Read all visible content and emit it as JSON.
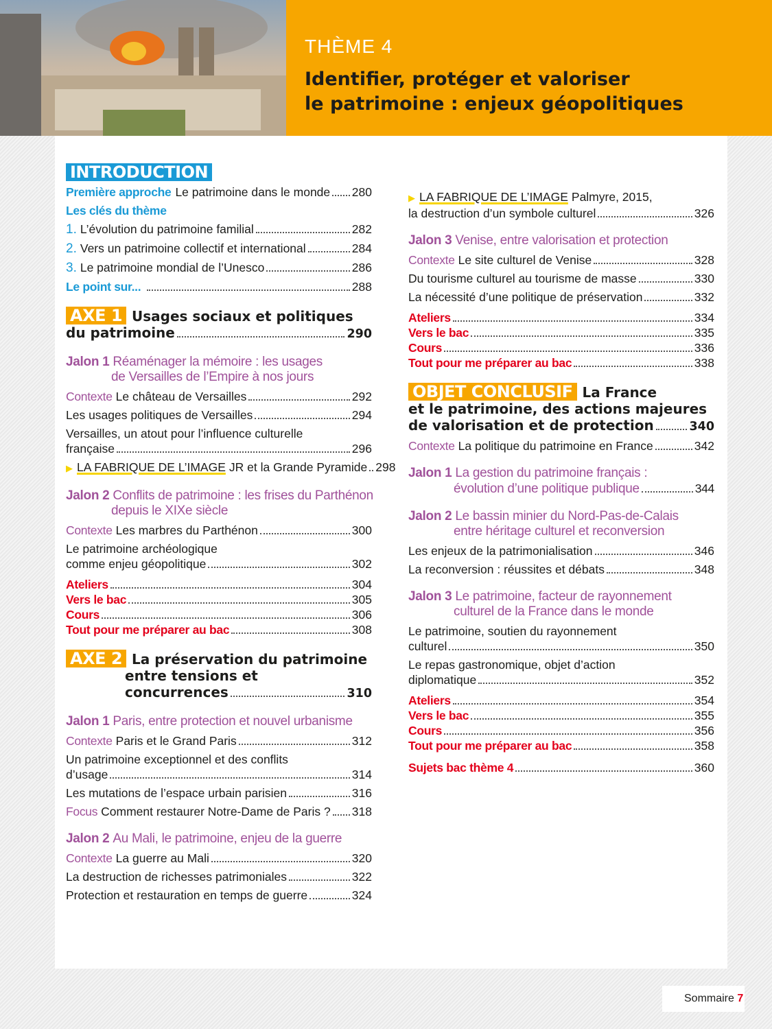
{
  "header": {
    "theme": "THÈME 4",
    "title_lines": [
      "Identifier, protéger et valoriser",
      "le patrimoine : enjeux géopolitiques"
    ]
  },
  "left": [
    [
      {
        "kind": "box",
        "style": "intro",
        "label": "INTRODUCTION",
        "lines": []
      },
      {
        "kind": "row",
        "pstyle": "blue",
        "prefix": "Première approche",
        "lines": [
          "Le patrimoine dans le monde"
        ],
        "page": "280"
      },
      {
        "kind": "row",
        "pstyle": "blue",
        "prefix": "Les clés du thème",
        "lines": [
          ""
        ],
        "page": ""
      },
      {
        "kind": "row",
        "pstyle": "num",
        "prefix": "1.",
        "lines": [
          "L’évolution du patrimoine familial"
        ],
        "page": "282"
      },
      {
        "kind": "row",
        "pstyle": "num",
        "prefix": "2.",
        "lines": [
          "Vers un patrimoine collectif et international"
        ],
        "page": "284"
      },
      {
        "kind": "row",
        "pstyle": "num",
        "prefix": "3.",
        "lines": [
          "Le patrimoine mondial de l’Unesco"
        ],
        "page": "286"
      },
      {
        "kind": "row",
        "pstyle": "blue",
        "prefix": "Le point sur...",
        "lines": [
          ""
        ],
        "page": "288"
      }
    ],
    [
      {
        "kind": "box",
        "style": "axe",
        "label": "AXE 1",
        "lines": [
          "Usages sociaux et politiques",
          "du patrimoine"
        ],
        "page": "290"
      }
    ],
    [
      {
        "kind": "jalon",
        "prefix": "Jalon 1",
        "lines": [
          "Réaménager la mémoire : les usages",
          "de Versailles de l’Empire à nos jours"
        ],
        "page": ""
      },
      {
        "kind": "row",
        "pstyle": "ctx",
        "prefix": "Contexte",
        "lines": [
          "Le château de Versailles"
        ],
        "page": "292"
      },
      {
        "kind": "row",
        "pstyle": "",
        "prefix": "",
        "lines": [
          "Les usages politiques de Versailles"
        ],
        "page": "294"
      },
      {
        "kind": "row",
        "pstyle": "",
        "prefix": "",
        "lines": [
          "Versailles, un atout pour l’influence culturelle",
          "française"
        ],
        "page": "296"
      },
      {
        "kind": "row",
        "pstyle": "fab",
        "prefix": "LA FABRIQUE DE L’IMAGE",
        "lines": [
          "JR et la Grande Pyramide"
        ],
        "page": "298"
      }
    ],
    [
      {
        "kind": "jalon",
        "prefix": "Jalon 2",
        "lines": [
          "Conflits de patrimoine : les frises du Parthénon",
          "depuis le XIXe siècle"
        ],
        "page": ""
      },
      {
        "kind": "row",
        "pstyle": "ctx",
        "prefix": "Contexte",
        "lines": [
          "Les marbres du Parthénon"
        ],
        "page": "300"
      },
      {
        "kind": "row",
        "pstyle": "",
        "prefix": "",
        "lines": [
          "Le patrimoine archéologique",
          "comme enjeu géopolitique"
        ],
        "page": "302"
      },
      {
        "kind": "red",
        "prefix": "Ateliers",
        "page": "304"
      },
      {
        "kind": "red",
        "prefix": "Vers le bac",
        "page": "305"
      },
      {
        "kind": "red",
        "prefix": "Cours",
        "page": "306"
      },
      {
        "kind": "red",
        "prefix": "Tout pour me préparer au bac",
        "page": "308"
      }
    ],
    [
      {
        "kind": "box",
        "style": "axe",
        "label": "AXE 2",
        "lines": [
          "La préservation du patrimoine",
          "entre tensions et",
          "concurrences"
        ],
        "page": "310"
      }
    ],
    [
      {
        "kind": "jalon",
        "prefix": "Jalon 1",
        "lines": [
          "Paris, entre protection et nouvel urbanisme"
        ],
        "page": ""
      },
      {
        "kind": "row",
        "pstyle": "ctx",
        "prefix": "Contexte",
        "lines": [
          "Paris et le Grand Paris"
        ],
        "page": "312"
      },
      {
        "kind": "row",
        "pstyle": "",
        "prefix": "",
        "lines": [
          "Un patrimoine exceptionnel et des conflits",
          "d’usage"
        ],
        "page": "314"
      },
      {
        "kind": "row",
        "pstyle": "",
        "prefix": "",
        "lines": [
          "Les mutations de l’espace urbain parisien"
        ],
        "page": "316"
      },
      {
        "kind": "row",
        "pstyle": "ctx",
        "prefix": "Focus",
        "lines": [
          "Comment restaurer Notre-Dame de Paris ?"
        ],
        "page": "318"
      }
    ],
    [
      {
        "kind": "jalon",
        "prefix": "Jalon 2",
        "lines": [
          "Au Mali, le patrimoine, enjeu de la guerre"
        ],
        "page": ""
      },
      {
        "kind": "row",
        "pstyle": "ctx",
        "prefix": "Contexte",
        "lines": [
          "La guerre au Mali"
        ],
        "page": "320"
      },
      {
        "kind": "row",
        "pstyle": "",
        "prefix": "",
        "lines": [
          "La destruction de richesses patrimoniales"
        ],
        "page": "322"
      },
      {
        "kind": "row",
        "pstyle": "",
        "prefix": "",
        "lines": [
          "Protection et restauration en temps de guerre"
        ],
        "page": "324"
      }
    ]
  ],
  "right": [
    [
      {
        "kind": "row",
        "pstyle": "fab",
        "prefix": "LA FABRIQUE DE L’IMAGE",
        "lines": [
          "Palmyre, 2015,",
          "la destruction d’un symbole culturel"
        ],
        "page": "326"
      }
    ],
    [
      {
        "kind": "jalon",
        "prefix": "Jalon 3",
        "lines": [
          "Venise, entre valorisation et protection"
        ],
        "page": ""
      },
      {
        "kind": "row",
        "pstyle": "ctx",
        "prefix": "Contexte",
        "lines": [
          "Le site culturel de Venise"
        ],
        "page": "328"
      },
      {
        "kind": "row",
        "pstyle": "",
        "prefix": "",
        "lines": [
          "Du tourisme culturel au tourisme de masse"
        ],
        "page": "330"
      },
      {
        "kind": "row",
        "pstyle": "",
        "prefix": "",
        "lines": [
          "La nécessité d’une politique de préservation"
        ],
        "page": "332"
      },
      {
        "kind": "red",
        "prefix": "Ateliers",
        "page": "334"
      },
      {
        "kind": "red",
        "prefix": "Vers le bac",
        "page": "335"
      },
      {
        "kind": "red",
        "prefix": "Cours",
        "page": "336"
      },
      {
        "kind": "red",
        "prefix": "Tout pour me préparer au bac",
        "page": "338"
      }
    ],
    [
      {
        "kind": "box",
        "style": "obj",
        "label": "OBJET CONCLUSIF",
        "lines": [
          "La France",
          "et le patrimoine, des actions majeures",
          "de valorisation et de protection"
        ],
        "page": "340"
      },
      {
        "kind": "row",
        "pstyle": "ctx",
        "prefix": "Contexte",
        "lines": [
          "La politique du patrimoine en France"
        ],
        "page": "342"
      }
    ],
    [
      {
        "kind": "jalon",
        "prefix": "Jalon 1",
        "lines": [
          "La gestion du patrimoine français :",
          "évolution d’une politique publique"
        ],
        "page": "344"
      }
    ],
    [
      {
        "kind": "jalon",
        "prefix": "Jalon 2",
        "lines": [
          "Le bassin minier du Nord-Pas-de-Calais",
          "entre héritage culturel et reconversion"
        ],
        "page": ""
      },
      {
        "kind": "row",
        "pstyle": "",
        "prefix": "",
        "lines": [
          "Les enjeux de la patrimonialisation"
        ],
        "page": "346"
      },
      {
        "kind": "row",
        "pstyle": "",
        "prefix": "",
        "lines": [
          "La reconversion : réussites et débats"
        ],
        "page": "348"
      }
    ],
    [
      {
        "kind": "jalon",
        "prefix": "Jalon 3",
        "lines": [
          "Le patrimoine, facteur de rayonnement",
          "culturel de la France dans le monde"
        ],
        "page": ""
      },
      {
        "kind": "row",
        "pstyle": "",
        "prefix": "",
        "lines": [
          "Le patrimoine, soutien du rayonnement",
          "culturel"
        ],
        "page": "350"
      },
      {
        "kind": "row",
        "pstyle": "",
        "prefix": "",
        "lines": [
          "Le repas gastronomique, objet d’action",
          "diplomatique"
        ],
        "page": "352"
      },
      {
        "kind": "red",
        "prefix": "Ateliers",
        "page": "354"
      },
      {
        "kind": "red",
        "prefix": "Vers le bac",
        "page": "355"
      },
      {
        "kind": "red",
        "prefix": "Cours",
        "page": "356"
      },
      {
        "kind": "red",
        "prefix": "Tout pour me préparer au bac",
        "page": "358"
      },
      {
        "kind": "red",
        "prefix": "Sujets bac thème 4",
        "page": "360",
        "gap": true
      }
    ]
  ],
  "footer": {
    "label": "Sommaire",
    "page": "7"
  },
  "colors": {
    "blue": "#1a9ad6",
    "orange": "#f7a600",
    "purple": "#a0519a",
    "red": "#e3001b"
  }
}
